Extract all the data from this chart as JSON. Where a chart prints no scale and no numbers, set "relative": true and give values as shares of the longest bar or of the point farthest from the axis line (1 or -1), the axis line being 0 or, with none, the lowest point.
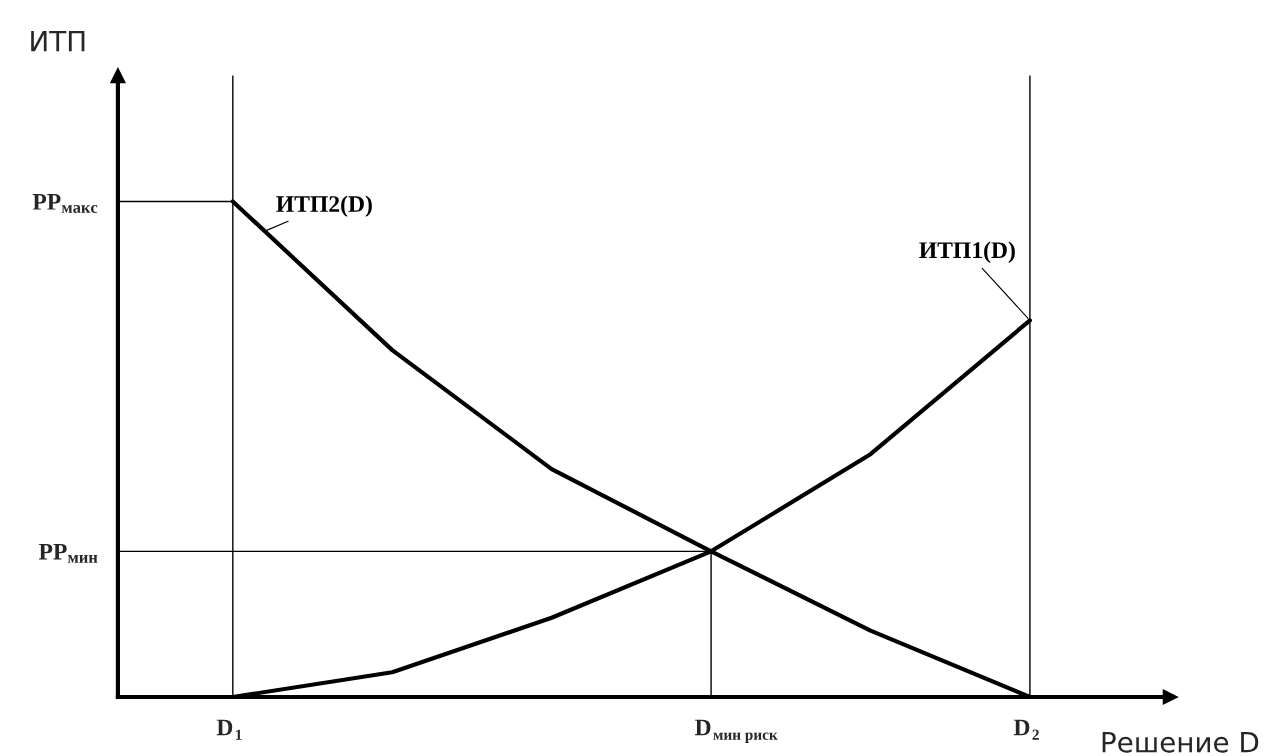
{
  "chart_data": {
    "type": "line",
    "xlabel": "Решение D",
    "annotations": [
      "ИТП"
    ],
    "relative": true,
    "categories": [
      "D$_{1}$",
      null,
      null,
      "D$_{мин риск}$",
      null,
      "D$_{2}$"
    ],
    "grid": false,
    "legend": false,
    "marker": "none",
    "line_style": "solid",
    "series": [
      {
        "name": "ИТП2(D)",
        "color": "#000000",
        "values": [
          1,
          0.7,
          0.46,
          0.294,
          0.134,
          0
        ]
      },
      {
        "name": "ИТП1(D)",
        "color": "#000000",
        "values": [
          0,
          0.05,
          0.16,
          0.294,
          0.49,
          0.76
        ]
      }
    ],
    "ref_lines": [
      {
        "axis": "y",
        "value": 1,
        "label": "PP$_{макс}$",
        "color": "#000000"
      },
      {
        "axis": "y",
        "value": 0.294,
        "label": "PP$_{мин}$",
        "color": "#000000"
      },
      {
        "axis": "x",
        "value": "D$_{1}$",
        "color": "#000000"
      },
      {
        "axis": "x",
        "value": "D$_{мин риск}$",
        "color": "#000000"
      },
      {
        "axis": "x",
        "value": "D$_{2}$",
        "color": "#000000"
      }
    ]
  }
}
